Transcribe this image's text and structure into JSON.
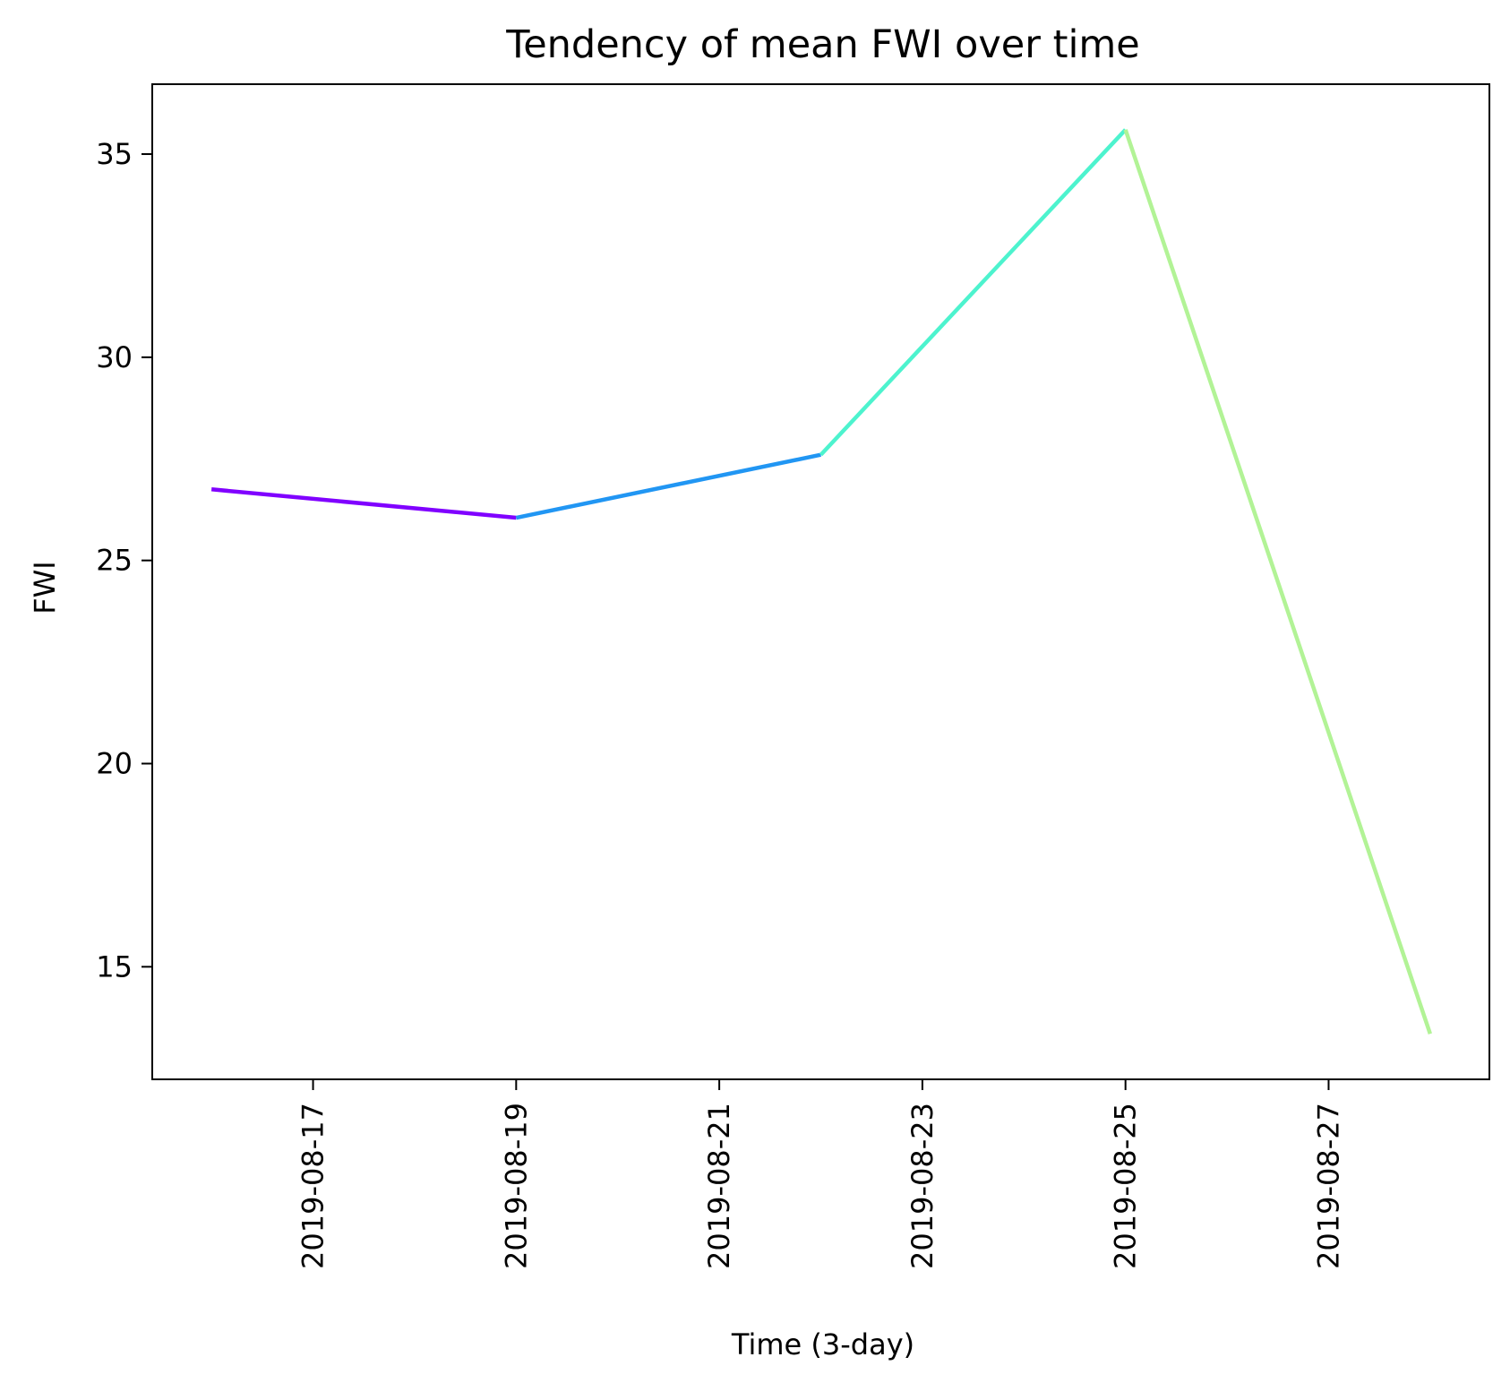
{
  "chart_data": {
    "type": "line",
    "title": "Tendency of mean FWI over time",
    "xlabel": "Time (3-day)",
    "ylabel": "FWI",
    "x": [
      "2019-08-16",
      "2019-08-19",
      "2019-08-22",
      "2019-08-25",
      "2019-08-28"
    ],
    "series": [
      {
        "values": [
          26.75,
          26.05,
          27.6,
          35.6,
          13.35
        ],
        "segment_colors": [
          "#8000ff",
          "#2196f3",
          "#4df3ce",
          "#b2f396"
        ]
      }
    ],
    "x_tick_labels": [
      "2019-08-17",
      "2019-08-19",
      "2019-08-21",
      "2019-08-23",
      "2019-08-25",
      "2019-08-27"
    ],
    "y_ticks": [
      15,
      20,
      25,
      30,
      35
    ],
    "xlim": [
      "2019-08-15T10:00",
      "2019-08-28T14:00"
    ],
    "ylim": [
      12.23,
      36.72
    ],
    "grid": false,
    "legend": "none"
  }
}
